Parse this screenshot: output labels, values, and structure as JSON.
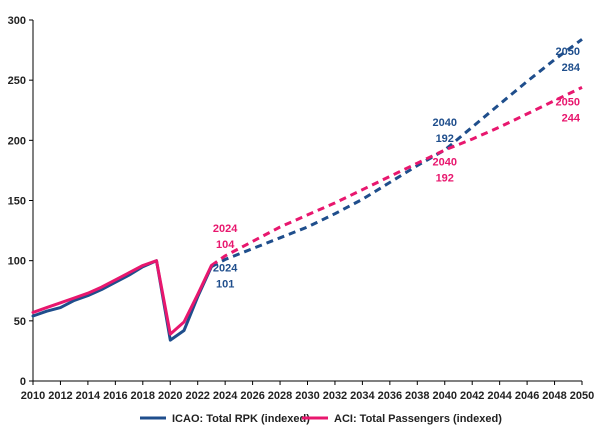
{
  "chart_data": {
    "type": "line",
    "title": "",
    "xlabel": "",
    "ylabel": "",
    "xlim": [
      2010,
      2050
    ],
    "ylim": [
      0,
      300
    ],
    "x_ticks": [
      2010,
      2012,
      2014,
      2016,
      2018,
      2020,
      2022,
      2024,
      2026,
      2028,
      2030,
      2032,
      2034,
      2036,
      2038,
      2040,
      2042,
      2044,
      2046,
      2048,
      2050
    ],
    "y_ticks": [
      0,
      50,
      100,
      150,
      200,
      250,
      300
    ],
    "grid": false,
    "legend_position": "bottom",
    "series": [
      {
        "name": "ICAO: Total RPK (indexed)",
        "color": "#1f4e8c",
        "historical": {
          "x": [
            2010,
            2011,
            2012,
            2013,
            2014,
            2015,
            2016,
            2017,
            2018,
            2019,
            2020,
            2021,
            2022,
            2023
          ],
          "y": [
            54,
            58,
            61,
            67,
            71,
            76,
            82,
            88,
            95,
            100,
            34,
            42,
            70,
            95
          ]
        },
        "projection": {
          "x": [
            2023,
            2024,
            2026,
            2028,
            2030,
            2032,
            2034,
            2036,
            2038,
            2040,
            2042,
            2044,
            2046,
            2048,
            2050
          ],
          "y": [
            95,
            101,
            110,
            119,
            128,
            139,
            151,
            165,
            179,
            192,
            211,
            230,
            249,
            267,
            284
          ]
        }
      },
      {
        "name": "ACI: Total Passengers (indexed)",
        "color": "#e8176e",
        "historical": {
          "x": [
            2010,
            2011,
            2012,
            2013,
            2014,
            2015,
            2016,
            2017,
            2018,
            2019,
            2020,
            2021,
            2022,
            2023
          ],
          "y": [
            57,
            61,
            65,
            69,
            73,
            78,
            84,
            90,
            96,
            100,
            39,
            49,
            72,
            96
          ]
        },
        "projection": {
          "x": [
            2023,
            2024,
            2026,
            2028,
            2030,
            2032,
            2034,
            2036,
            2038,
            2040,
            2042,
            2044,
            2046,
            2048,
            2050
          ],
          "y": [
            96,
            104,
            116,
            128,
            138,
            148,
            159,
            170,
            181,
            192,
            201,
            211,
            222,
            233,
            244
          ]
        }
      }
    ],
    "annotations": [
      {
        "year": "2024",
        "value": "104",
        "series": 1,
        "anchor_x": 2024,
        "anchor_y": 119
      },
      {
        "year": "2024",
        "value": "101",
        "series": 0,
        "anchor_x": 2024,
        "anchor_y": 86
      },
      {
        "year": "2040",
        "value": "192",
        "series": 0,
        "anchor_x": 2040,
        "anchor_y": 207
      },
      {
        "year": "2040",
        "value": "192",
        "series": 1,
        "anchor_x": 2040,
        "anchor_y": 174
      },
      {
        "year": "2050",
        "value": "284",
        "series": 0,
        "anchor_x": 2050,
        "anchor_y": 266
      },
      {
        "year": "2050",
        "value": "244",
        "series": 1,
        "anchor_x": 2050,
        "anchor_y": 224
      }
    ]
  }
}
